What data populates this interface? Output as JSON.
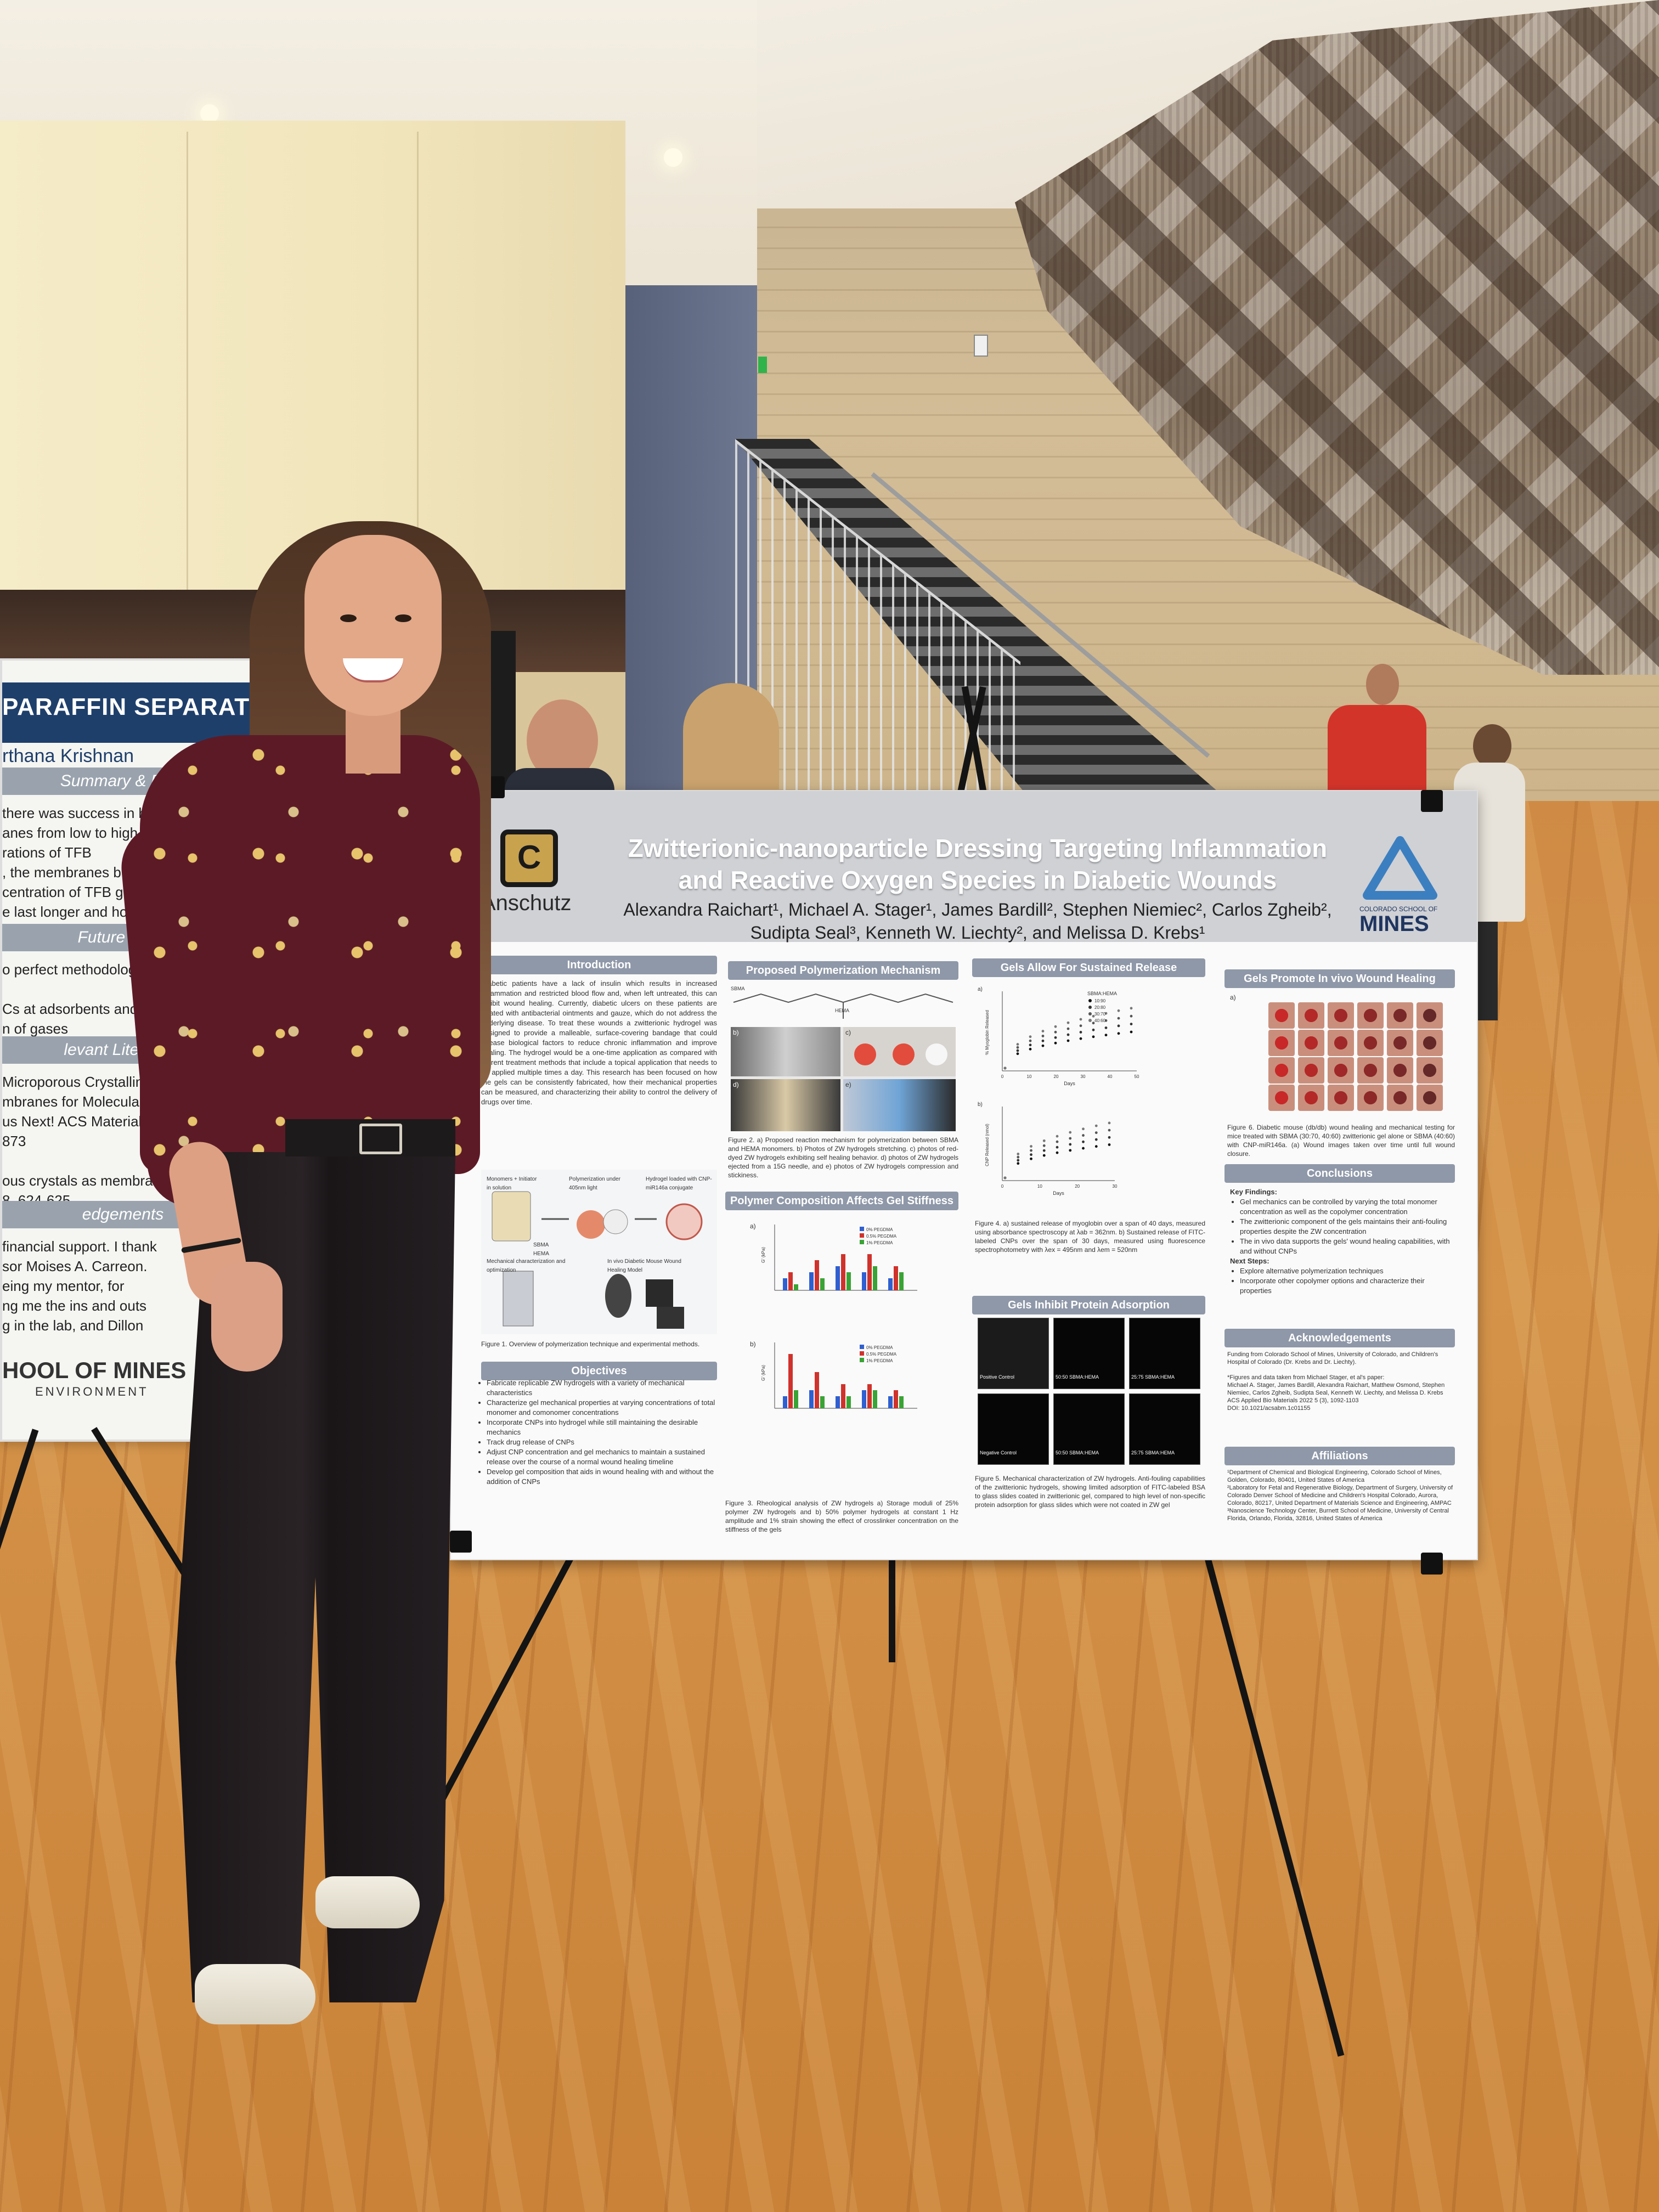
{
  "scene": {
    "description_colors": {
      "floor": "#cf8b45",
      "blouse": "#5c1a26",
      "poster_header": "#cfd1d5",
      "section_header": "#8f98a8",
      "left_poster_banner": "#1f3f6b"
    }
  },
  "left_poster": {
    "title": "PARAFFIN SEPARATION",
    "author": "rthana Krishnan",
    "sections": [
      {
        "label": "Summary & Data",
        "text": "there was success in building the\nanes from low to high and high t\nrations of TFB\n, the membranes built from a lo\ncentration of TFB generally ma\ne last longer and hold more p"
      },
      {
        "label": "Future Work",
        "text": "o perfect methodology of bui\n\nCs at adsorbents and memb\nn of gases"
      },
      {
        "label": "levant Literature",
        "text": "Microporous Crystalline\nmbranes for Molecular G\nus Next! ACS Materials\n873\n\nous crystals as membranes,\n8, 624-625"
      },
      {
        "label": "edgements",
        "text": "financial support. I thank\nsor Moises A. Carreon.\neing my mentor, for\nng me the ins and outs\ng in the lab, and Dillon"
      }
    ],
    "logo": "HOOL OF MINES",
    "logo_sub": "ENVIRONMENT"
  },
  "poster": {
    "left_logo_label": "Anschutz",
    "title_line1": "Zwitterionic-nanoparticle Dressing Targeting Inflammation",
    "title_line2": "and Reactive Oxygen Species in Diabetic Wounds",
    "authors_line1": "Alexandra Raichart¹, Michael A. Stager¹, James Bardill², Stephen Niemiec², Carlos Zgheib²,",
    "authors_line2": "Sudipta Seal³, Kenneth W. Liechty², and Melissa D. Krebs¹",
    "right_logo_sub": "COLORADO SCHOOL OF",
    "right_logo_label": "MINES",
    "introduction": {
      "heading": "Introduction",
      "text": "Diabetic patients have a lack of insulin which results in increased inflammation and restricted blood flow and, when left untreated, this can inhibit wound healing. Currently, diabetic ulcers on these patients are treated with antibacterial ointments and gauze, which do not address the underlying disease. To treat these wounds a zwitterionic hydrogel was designed to provide a malleable, surface-covering bandage that could release biological factors to reduce chronic inflammation and improve healing. The hydrogel would be a one-time application as compared with current treatment methods that include a topical application that needs to be applied multiple times a day. This research has been focused on how the gels can be consistently fabricated, how their mechanical properties can be measured, and characterizing their ability to control the delivery of drugs over time."
    },
    "figure1": {
      "labels": [
        "Monomers + Initiator in solution",
        "Polymerization under 405nm light",
        "Hydrogel loaded with CNP-miR146a conjugate",
        "SBMA",
        "HEMA",
        "Mechanical characterization and optimization",
        "In vivo Diabetic Mouse Wound Healing Model"
      ],
      "caption": "Figure 1. Overview of polymerization technique and experimental methods."
    },
    "objectives": {
      "heading": "Objectives",
      "items": [
        "Fabricate replicable ZW hydrogels with a variety of mechanical characteristics",
        "Characterize gel mechanical properties at varying concentrations of total monomer and comonomer concentrations",
        "Incorporate CNPs into hydrogel while still maintaining the desirable mechanics",
        "Track drug release of CNPs",
        "Adjust CNP concentration and gel mechanics to maintain a sustained release over the course of a normal wound healing timeline",
        "Develop gel composition that aids in wound healing with and without the addition of CNPs"
      ]
    },
    "mechanism": {
      "heading": "Proposed Polymerization Mechanism",
      "labels": [
        "SBMA",
        "HEMA",
        "a)",
        "b)",
        "c)",
        "d)",
        "e)"
      ],
      "caption": "Figure 2. a) Proposed reaction mechanism for polymerization between SBMA and HEMA monomers. b) Photos of ZW hydrogels stretching. c) photos of red-dyed ZW hydrogels exhibiting self healing behavior. d) photos of ZW hydrogels ejected from a 15G needle, and e) photos of ZW hydrogels compression and stickiness."
    },
    "stiffness": {
      "heading": "Polymer Composition Affects Gel Stiffness",
      "panel_a": "a)",
      "panel_b": "b)",
      "legend_a": [
        "0% PEGDMA",
        "0.5% PEGDMA",
        "1% PEGDMA"
      ],
      "legend_b": [
        "0% PEGDMA",
        "0.5% PEGDMA",
        "1% PEGDMA"
      ],
      "ylabel": "G' (kPa)",
      "caption": "Figure 3. Rheological analysis of ZW hydrogels a) Storage moduli of 25% polymer ZW hydrogels and b) 50% polymer hydrogels at constant 1 Hz amplitude and 1% strain showing the effect of crosslinker concentration on the stiffness of the gels"
    },
    "release": {
      "heading": "Gels Allow For Sustained Release",
      "legend_title": "SBMA:HEMA",
      "legend": [
        "10:90",
        "20:80",
        "30:70",
        "40:60"
      ],
      "ylabel_a": "% Myoglobin Released",
      "ylabel_b": "CNP Released (nmol)",
      "xlabel": "Days",
      "panel_a": "a)",
      "panel_b": "b)",
      "xticks_a": [
        "0",
        "10",
        "20",
        "30",
        "40",
        "50"
      ],
      "xticks_b": [
        "0",
        "10",
        "20",
        "30"
      ],
      "caption": "Figure 4. a) sustained release of myoglobin over a span of 40 days, measured using absorbance spectroscopy at λab = 362nm. b) Sustained release of FITC-labeled CNPs over the span of 30 days, measured using fluorescence spectrophotometry with λex = 495nm and λem = 520nm"
    },
    "protein": {
      "heading": "Gels Inhibit Protein Adsorption",
      "labels": [
        "Positive Control",
        "50:50 SBMA:HEMA",
        "25:75 SBMA:HEMA",
        "Negative Control",
        "50:50 SBMA:HEMA",
        "25:75 SBMA:HEMA"
      ],
      "caption": "Figure 5. Mechanical characterization of ZW hydrogels. Anti-fouling capabilities of the zwitterionic hydrogels, showing limited adsorption of FITC-labeled BSA to glass slides coated in zwitterionic gel, compared to high level of non-specific protein adsorption for glass slides which were not coated in ZW gel"
    },
    "wound": {
      "heading": "Gels Promote In vivo Wound Healing",
      "panel": "a)",
      "caption": "Figure 6. Diabetic mouse (db/db) wound healing and mechanical testing for mice treated with SBMA (30:70, 40:60) zwitterionic gel alone or SBMA (40:60) with CNP-miR146a. (a) Wound images taken over time until full wound closure."
    },
    "conclusions": {
      "heading": "Conclusions",
      "key_label": "Key Findings:",
      "key": [
        "Gel mechanics can be controlled by varying the total monomer concentration as well as the copolymer concentration",
        "The zwitterionic component of the gels maintains their anti-fouling properties despite the ZW concentration",
        "The in vivo data supports the gels' wound healing capabilities, with and without CNPs"
      ],
      "next_label": "Next Steps:",
      "next": [
        "Explore alternative polymerization techniques",
        "Incorporate other copolymer options and characterize their properties"
      ]
    },
    "acknowledgements": {
      "heading": "Acknowledgements",
      "text": "Funding from Colorado School of Mines, University of Colorado, and Children's Hospital of Colorado (Dr. Krebs and Dr. Liechty).\n\n*Figures and data taken from Michael Stager, et al's paper:\nMichael A. Stager, James Bardill, Alexandra Raichart, Matthew Osmond, Stephen Niemiec, Carlos Zgheib, Sudipta Seal, Kenneth W. Liechty, and Melissa D. Krebs\nACS Applied Bio Materials 2022 5 (3), 1092-1103\nDOI: 10.1021/acsabm.1c01155"
    },
    "affiliations": {
      "heading": "Affiliations",
      "text": "¹Department of Chemical and Biological Engineering, Colorado School of Mines, Golden, Colorado, 80401, United States of America\n²Laboratory for Fetal and Regenerative Biology, Department of Surgery, University of Colorado Denver School of Medicine and Children's Hospital Colorado, Aurora, Colorado, 80217, United Department of Materials Science and Engineering, AMPAC\n³Nanoscience Technology Center, Burnett School of Medicine, University of Central Florida, Orlando, Florida, 32816, United States of America"
    }
  }
}
